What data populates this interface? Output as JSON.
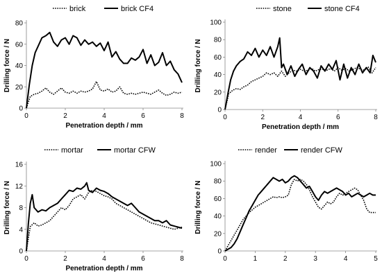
{
  "chart_data": [
    {
      "type": "line",
      "xlabel": "Penetration depth / mm",
      "ylabel": "Drilling force / N",
      "xlim": [
        0,
        8
      ],
      "ylim": [
        0,
        80
      ],
      "xticks": [
        0,
        2,
        4,
        6,
        8
      ],
      "yticks": [
        0,
        20,
        40,
        60,
        80
      ],
      "grid": false,
      "legend": "top",
      "series": [
        {
          "name": "brick",
          "style": "dotted",
          "x": [
            0,
            0.2,
            0.4,
            0.6,
            0.8,
            1.0,
            1.2,
            1.4,
            1.6,
            1.8,
            2.0,
            2.2,
            2.4,
            2.6,
            2.8,
            3.0,
            3.2,
            3.4,
            3.6,
            3.8,
            4.0,
            4.2,
            4.4,
            4.6,
            4.8,
            5.0,
            5.2,
            5.4,
            5.6,
            5.8,
            6.0,
            6.2,
            6.4,
            6.6,
            6.8,
            7.0,
            7.2,
            7.4,
            7.6,
            7.8,
            8.0
          ],
          "y": [
            0,
            11,
            13,
            14,
            16,
            19,
            15,
            13,
            16,
            19,
            15,
            14,
            16,
            14,
            16,
            15,
            16,
            18,
            25,
            17,
            16,
            18,
            15,
            16,
            20,
            14,
            13,
            14,
            13,
            14,
            15,
            14,
            13,
            15,
            17,
            14,
            12,
            13,
            15,
            14,
            15
          ]
        },
        {
          "name": "brick CF4",
          "style": "solid",
          "x": [
            0,
            0.15,
            0.3,
            0.45,
            0.6,
            0.8,
            1.0,
            1.2,
            1.4,
            1.6,
            1.8,
            2.0,
            2.2,
            2.4,
            2.6,
            2.8,
            3.0,
            3.2,
            3.4,
            3.6,
            3.8,
            4.0,
            4.2,
            4.4,
            4.6,
            4.8,
            5.0,
            5.2,
            5.4,
            5.6,
            5.8,
            6.0,
            6.2,
            6.4,
            6.6,
            6.8,
            7.0,
            7.2,
            7.4,
            7.6,
            7.8,
            8.0
          ],
          "y": [
            0,
            22,
            40,
            52,
            58,
            66,
            68,
            71,
            62,
            58,
            64,
            66,
            60,
            68,
            66,
            59,
            64,
            60,
            62,
            58,
            61,
            54,
            62,
            48,
            53,
            46,
            42,
            42,
            47,
            45,
            48,
            55,
            42,
            50,
            40,
            43,
            52,
            40,
            44,
            36,
            32,
            24
          ]
        }
      ]
    },
    {
      "type": "line",
      "xlabel": "Penetration depth / mm",
      "ylabel": "Drilling force / N",
      "xlim": [
        0,
        8
      ],
      "ylim": [
        0,
        100
      ],
      "xticks": [
        0,
        2,
        4,
        6,
        8
      ],
      "yticks": [
        0,
        20,
        40,
        60,
        80,
        100
      ],
      "grid": false,
      "legend": "top",
      "series": [
        {
          "name": "stone",
          "style": "dotted",
          "x": [
            0,
            0.2,
            0.4,
            0.6,
            0.8,
            1.0,
            1.2,
            1.4,
            1.6,
            1.8,
            2.0,
            2.2,
            2.4,
            2.6,
            2.8,
            3.0,
            3.2,
            3.4,
            3.6,
            3.8,
            4.0,
            4.2,
            4.4,
            4.6,
            4.8,
            5.0,
            5.2,
            5.4,
            5.6,
            5.8,
            6.0,
            6.2,
            6.4,
            6.6,
            6.8,
            7.0,
            7.2,
            7.4,
            7.6,
            7.8,
            8.0
          ],
          "y": [
            0,
            18,
            22,
            24,
            23,
            26,
            28,
            32,
            34,
            36,
            38,
            42,
            40,
            42,
            38,
            44,
            38,
            42,
            45,
            44,
            46,
            44,
            45,
            47,
            44,
            46,
            46,
            45,
            47,
            44,
            48,
            45,
            47,
            44,
            46,
            48,
            46,
            45,
            49,
            42,
            48
          ]
        },
        {
          "name": "stone CF4",
          "style": "solid",
          "x": [
            0,
            0.15,
            0.3,
            0.45,
            0.6,
            0.8,
            1.0,
            1.2,
            1.4,
            1.6,
            1.8,
            2.0,
            2.2,
            2.4,
            2.6,
            2.8,
            2.9,
            3.0,
            3.1,
            3.3,
            3.5,
            3.7,
            3.9,
            4.1,
            4.3,
            4.5,
            4.7,
            4.9,
            5.1,
            5.3,
            5.5,
            5.7,
            5.9,
            6.1,
            6.3,
            6.5,
            6.7,
            6.9,
            7.1,
            7.3,
            7.5,
            7.7,
            7.85,
            8.0
          ],
          "y": [
            0,
            18,
            34,
            44,
            50,
            55,
            58,
            66,
            62,
            70,
            60,
            68,
            62,
            72,
            60,
            72,
            82,
            48,
            52,
            40,
            50,
            38,
            46,
            52,
            40,
            48,
            44,
            36,
            50,
            44,
            52,
            46,
            56,
            34,
            52,
            36,
            48,
            40,
            52,
            42,
            48,
            42,
            62,
            54
          ]
        }
      ]
    },
    {
      "type": "line",
      "xlabel": "Penetration depth / mm",
      "ylabel": "Drilling force / N",
      "xlim": [
        0,
        8
      ],
      "ylim": [
        0,
        16
      ],
      "xticks": [
        0,
        2,
        4,
        6,
        8
      ],
      "yticks": [
        0,
        4,
        8,
        12,
        16
      ],
      "grid": false,
      "legend": "top",
      "series": [
        {
          "name": "mortar",
          "style": "dotted",
          "x": [
            0,
            0.2,
            0.4,
            0.6,
            0.8,
            1.0,
            1.2,
            1.4,
            1.6,
            1.8,
            2.0,
            2.2,
            2.4,
            2.6,
            2.8,
            3.0,
            3.2,
            3.4,
            3.6,
            3.8,
            4.0,
            4.2,
            4.4,
            4.6,
            4.8,
            5.0,
            5.2,
            5.4,
            5.6,
            5.8,
            6.0,
            6.2,
            6.4,
            6.6,
            6.8,
            7.0,
            7.2,
            7.4,
            7.6,
            7.8,
            8.0
          ],
          "y": [
            0,
            4.5,
            5.2,
            4.6,
            4.8,
            5.2,
            5.6,
            6.4,
            7.2,
            8.0,
            7.6,
            8.4,
            9.6,
            10.0,
            10.4,
            9.6,
            10.8,
            11.2,
            11.0,
            10.6,
            10.2,
            10.0,
            9.6,
            8.8,
            8.4,
            8.0,
            7.6,
            7.2,
            6.8,
            6.4,
            6.0,
            5.6,
            5.2,
            5.0,
            4.8,
            4.6,
            4.4,
            4.2,
            4.0,
            4.2,
            4.4
          ]
        },
        {
          "name": "mortar CFW",
          "style": "solid",
          "x": [
            0,
            0.1,
            0.2,
            0.3,
            0.4,
            0.6,
            0.8,
            1.0,
            1.2,
            1.4,
            1.6,
            1.8,
            2.0,
            2.2,
            2.4,
            2.6,
            2.8,
            3.0,
            3.1,
            3.2,
            3.4,
            3.6,
            3.8,
            4.0,
            4.2,
            4.4,
            4.6,
            4.8,
            5.0,
            5.2,
            5.4,
            5.6,
            5.8,
            6.0,
            6.2,
            6.4,
            6.6,
            6.8,
            7.0,
            7.2,
            7.4,
            7.6,
            7.8,
            8.0
          ],
          "y": [
            0,
            5.0,
            8.8,
            10.4,
            8.0,
            7.2,
            7.6,
            7.4,
            8.0,
            8.4,
            8.8,
            9.6,
            10.4,
            11.2,
            11.0,
            11.6,
            11.4,
            12.0,
            12.6,
            11.2,
            10.8,
            11.6,
            11.2,
            11.0,
            10.6,
            10.0,
            9.6,
            9.2,
            8.8,
            8.4,
            8.8,
            8.0,
            7.2,
            6.8,
            6.4,
            6.0,
            5.6,
            5.6,
            5.2,
            5.6,
            4.8,
            4.6,
            4.4,
            4.2
          ]
        }
      ]
    },
    {
      "type": "line",
      "xlabel": "",
      "ylabel": "Drilling force / N",
      "xlim": [
        0,
        5
      ],
      "ylim": [
        0,
        100
      ],
      "xticks": [
        0,
        1,
        2,
        3,
        4,
        5
      ],
      "yticks": [
        0,
        20,
        40,
        60,
        80,
        100
      ],
      "grid": false,
      "legend": "top",
      "series": [
        {
          "name": "render",
          "style": "dotted",
          "x": [
            0,
            0.1,
            0.2,
            0.3,
            0.4,
            0.5,
            0.6,
            0.7,
            0.8,
            0.9,
            1.0,
            1.1,
            1.2,
            1.3,
            1.4,
            1.5,
            1.6,
            1.7,
            1.8,
            1.9,
            2.0,
            2.1,
            2.2,
            2.3,
            2.4,
            2.5,
            2.6,
            2.7,
            2.8,
            2.9,
            3.0,
            3.1,
            3.2,
            3.3,
            3.4,
            3.5,
            3.6,
            3.7,
            3.8,
            3.9,
            4.0,
            4.1,
            4.2,
            4.3,
            4.4,
            4.5,
            4.6,
            4.7,
            4.8,
            4.9,
            5.0
          ],
          "y": [
            0,
            6,
            12,
            18,
            24,
            30,
            36,
            40,
            44,
            47,
            50,
            52,
            54,
            56,
            58,
            60,
            62,
            61,
            62,
            61,
            62,
            64,
            76,
            82,
            80,
            82,
            80,
            76,
            70,
            62,
            56,
            50,
            48,
            52,
            56,
            54,
            56,
            62,
            66,
            64,
            66,
            68,
            70,
            72,
            70,
            64,
            58,
            48,
            44,
            44,
            44
          ]
        },
        {
          "name": "render CFW",
          "style": "solid",
          "x": [
            0,
            0.1,
            0.2,
            0.3,
            0.4,
            0.5,
            0.6,
            0.7,
            0.8,
            0.9,
            1.0,
            1.1,
            1.2,
            1.3,
            1.4,
            1.5,
            1.6,
            1.7,
            1.8,
            1.9,
            2.0,
            2.1,
            2.2,
            2.3,
            2.4,
            2.5,
            2.6,
            2.7,
            2.8,
            2.9,
            3.0,
            3.1,
            3.2,
            3.3,
            3.4,
            3.5,
            3.6,
            3.7,
            3.8,
            3.9,
            4.0,
            4.1,
            4.2,
            4.3,
            4.4,
            4.5,
            4.6,
            4.7,
            4.8,
            4.9,
            5.0
          ],
          "y": [
            0,
            2,
            4,
            8,
            14,
            22,
            30,
            38,
            46,
            52,
            58,
            64,
            68,
            72,
            76,
            80,
            84,
            82,
            80,
            82,
            78,
            80,
            84,
            86,
            84,
            80,
            76,
            72,
            74,
            68,
            62,
            58,
            64,
            68,
            66,
            68,
            70,
            72,
            70,
            68,
            64,
            66,
            62,
            64,
            66,
            64,
            62,
            64,
            66,
            64,
            64
          ]
        }
      ]
    }
  ]
}
